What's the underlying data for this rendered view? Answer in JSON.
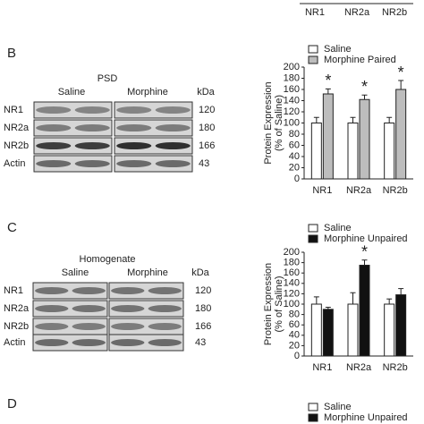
{
  "top_panel": {
    "categories": [
      "NR1",
      "NR2a",
      "NR2b"
    ]
  },
  "panels": [
    {
      "letter": "B",
      "blot": {
        "title": "PSD",
        "groups": [
          "Saline",
          "Morphine"
        ],
        "unit": "kDa",
        "rows": [
          {
            "label": "NR1",
            "kda": "120"
          },
          {
            "label": "NR2a",
            "kda": "180"
          },
          {
            "label": "NR2b",
            "kda": "166"
          },
          {
            "label": "Actin",
            "kda": "43"
          }
        ]
      }
    },
    {
      "letter": "C",
      "blot": {
        "title": "Homogenate",
        "groups": [
          "Saline",
          "Morphine"
        ],
        "unit": "kDa",
        "rows": [
          {
            "label": "NR1",
            "kda": "120"
          },
          {
            "label": "NR2a",
            "kda": "180"
          },
          {
            "label": "NR2b",
            "kda": "166"
          },
          {
            "label": "Actin",
            "kda": "43"
          }
        ]
      }
    },
    {
      "letter": "D",
      "legend": [
        {
          "name": "Saline",
          "color": "#ffffff"
        },
        {
          "name": "Morphine Unpaired",
          "color": "#111111"
        }
      ]
    }
  ],
  "chart_data": [
    {
      "type": "bar",
      "y_label": [
        "Protein Expression",
        "(% of Saline)"
      ],
      "categories": [
        "NR1",
        "NR2a",
        "NR2b"
      ],
      "series": [
        {
          "name": "Saline",
          "color": "#ffffff",
          "values": [
            100,
            100,
            100
          ],
          "errors": [
            10,
            10,
            10
          ]
        },
        {
          "name": "Morphine Paired",
          "color": "#bdbdbd",
          "values": [
            152,
            142,
            160
          ],
          "errors": [
            9,
            8,
            16
          ]
        }
      ],
      "annotations": [
        "*",
        "*",
        "*"
      ],
      "ylim": [
        0,
        200
      ],
      "yticks": [
        0,
        20,
        40,
        60,
        80,
        100,
        120,
        140,
        160,
        180,
        200
      ]
    },
    {
      "type": "bar",
      "y_label": [
        "Protein Expression",
        "(% of Saline)"
      ],
      "categories": [
        "NR1",
        "NR2a",
        "NR2b"
      ],
      "series": [
        {
          "name": "Saline",
          "color": "#ffffff",
          "values": [
            100,
            100,
            100
          ],
          "errors": [
            14,
            22,
            10
          ]
        },
        {
          "name": "Morphine Unpaired",
          "color": "#111111",
          "values": [
            90,
            175,
            118
          ],
          "errors": [
            4,
            10,
            12
          ]
        }
      ],
      "annotations": [
        null,
        "*",
        null
      ],
      "ylim": [
        0,
        200
      ],
      "yticks": [
        0,
        20,
        40,
        60,
        80,
        100,
        120,
        140,
        160,
        180,
        200
      ]
    }
  ]
}
